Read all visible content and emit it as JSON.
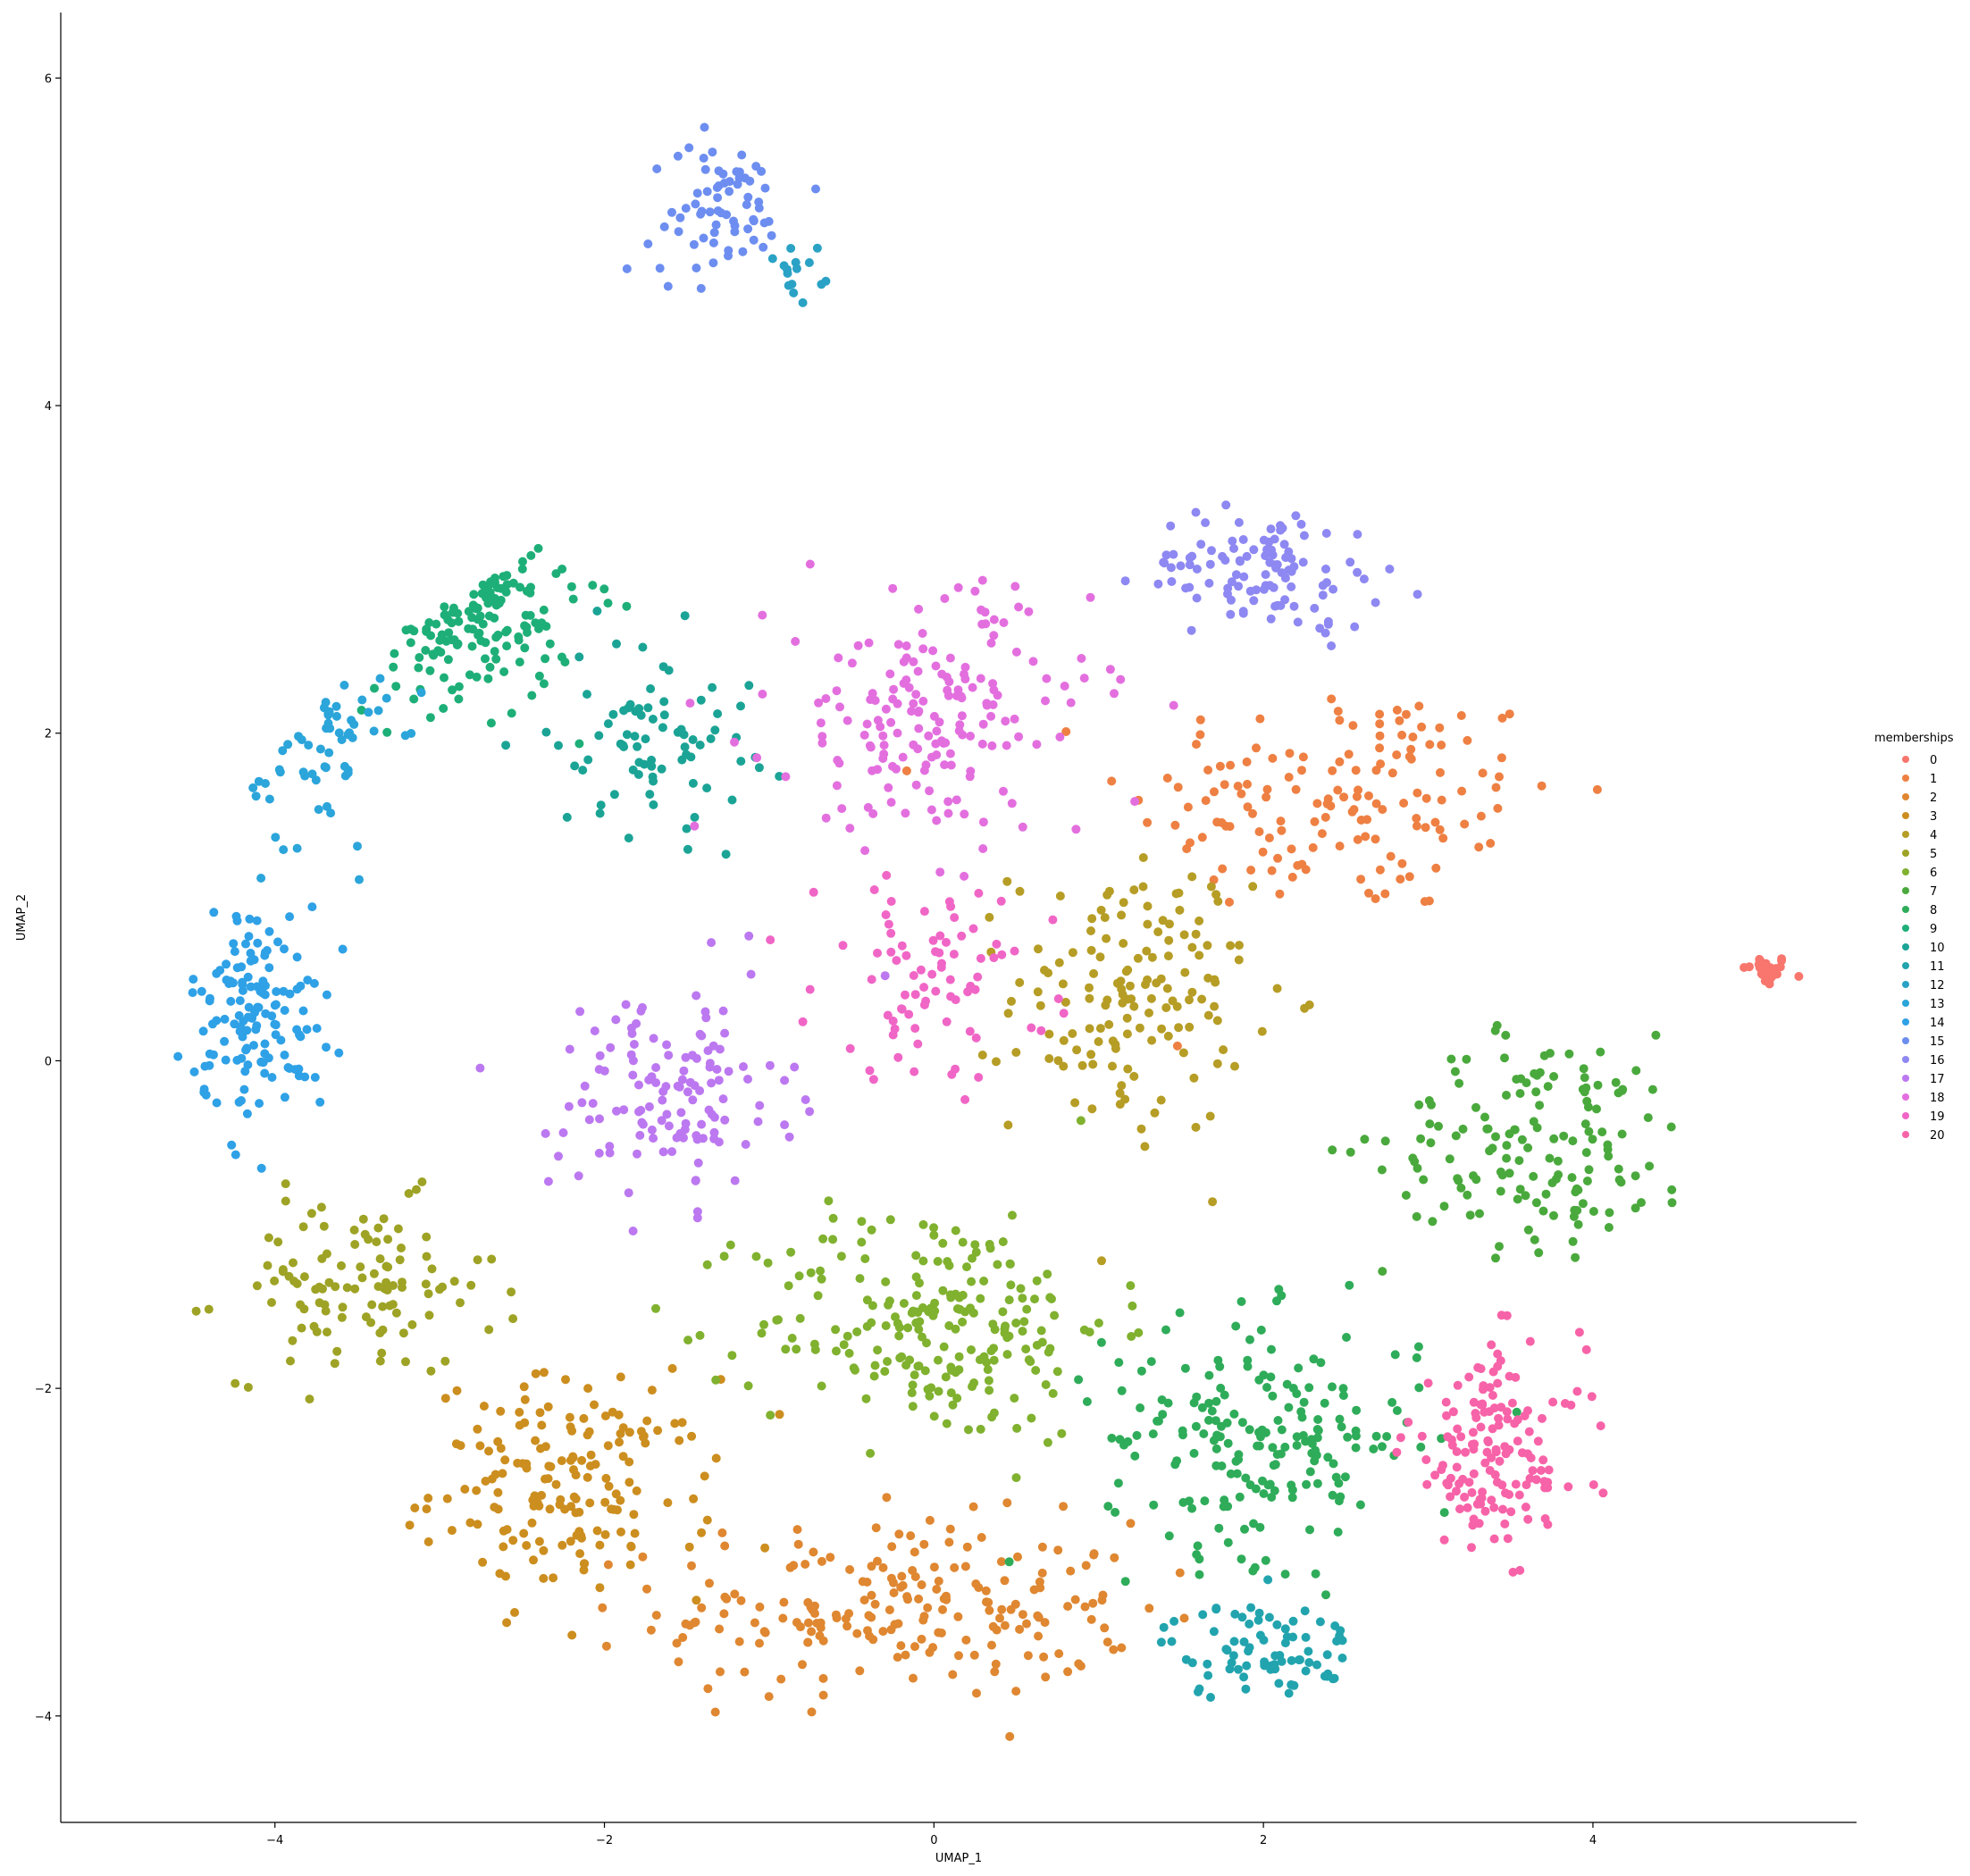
{
  "chart_data": {
    "type": "scatter",
    "title": "",
    "xlabel": "UMAP_1",
    "ylabel": "UMAP_2",
    "xlim": [
      -5.3,
      5.6
    ],
    "ylim": [
      -4.65,
      6.4
    ],
    "xticks": [
      -4,
      -2,
      0,
      2,
      4
    ],
    "yticks": [
      -4,
      -2,
      0,
      2,
      4,
      6
    ],
    "xtick_labels": [
      "−4",
      "−2",
      "0",
      "2",
      "4"
    ],
    "ytick_labels": [
      "−4",
      "−2",
      "0",
      "2",
      "4",
      "6"
    ],
    "grid": false,
    "legend": {
      "title": "memberships",
      "placement": "right",
      "entries": [
        "0",
        "1",
        "2",
        "3",
        "4",
        "5",
        "6",
        "7",
        "8",
        "9",
        "10",
        "11",
        "12",
        "13",
        "14",
        "15",
        "16",
        "17",
        "18",
        "19",
        "20"
      ]
    },
    "colors": [
      "#f8766d",
      "#ee8043",
      "#df8731",
      "#cc8e1f",
      "#b69d25",
      "#9ea325",
      "#80b12f",
      "#4aa93c",
      "#2fac59",
      "#1eaf78",
      "#1ba496",
      "#22a4ae",
      "#2aa2c5",
      "#2ba5da",
      "#2fa1e6",
      "#6d8ef0",
      "#8e88f2",
      "#bc78f0",
      "#e36fdf",
      "#f066c6",
      "#f763a8"
    ],
    "series": [
      {
        "name": "0",
        "center": [
          5.05,
          0.55
        ],
        "spread": [
          0.12,
          0.08
        ],
        "count": 30,
        "n_shape": "blob"
      },
      {
        "name": "1",
        "center": [
          2.5,
          1.6
        ],
        "spread": [
          1.1,
          0.6
        ],
        "count": 150,
        "n_shape": "blob"
      },
      {
        "name": "2",
        "center": [
          -0.2,
          -3.35
        ],
        "spread": [
          1.2,
          0.45
        ],
        "count": 210,
        "n_shape": "blob"
      },
      {
        "name": "3",
        "center": [
          -2.2,
          -2.6
        ],
        "spread": [
          0.7,
          0.55
        ],
        "count": 170,
        "n_shape": "blob"
      },
      {
        "name": "4",
        "center": [
          1.2,
          0.4
        ],
        "spread": [
          0.6,
          0.7
        ],
        "count": 150,
        "n_shape": "blob"
      },
      {
        "name": "5",
        "center": [
          -3.5,
          -1.4
        ],
        "spread": [
          0.7,
          0.45
        ],
        "count": 110,
        "n_shape": "blob"
      },
      {
        "name": "6",
        "center": [
          0.0,
          -1.6
        ],
        "spread": [
          0.9,
          0.6
        ],
        "count": 220,
        "n_shape": "blob"
      },
      {
        "name": "7",
        "center": [
          3.7,
          -0.5
        ],
        "spread": [
          0.8,
          0.55
        ],
        "count": 150,
        "n_shape": "blob"
      },
      {
        "name": "8",
        "center": [
          2.0,
          -2.3
        ],
        "spread": [
          0.8,
          0.6
        ],
        "count": 200,
        "n_shape": "blob"
      },
      {
        "name": "9",
        "center": [
          -2.9,
          2.8
        ],
        "spread": [
          0.6,
          0.5
        ],
        "count": 150,
        "n_shape": "blob"
      },
      {
        "name": "10",
        "center": [
          -1.7,
          2.0
        ],
        "spread": [
          0.5,
          0.5
        ],
        "count": 80,
        "n_shape": "blob"
      },
      {
        "name": "11",
        "center": [
          2.0,
          -3.6
        ],
        "spread": [
          0.5,
          0.25
        ],
        "count": 80,
        "n_shape": "blob"
      },
      {
        "name": "12",
        "center": [
          -0.8,
          4.8
        ],
        "spread": [
          0.15,
          0.25
        ],
        "count": 15,
        "n_shape": "blob"
      },
      {
        "name": "13",
        "center": [
          -3.8,
          1.9
        ],
        "spread": [
          0.4,
          0.5
        ],
        "count": 60,
        "n_shape": "blob"
      },
      {
        "name": "14",
        "center": [
          -4.1,
          0.3
        ],
        "spread": [
          0.35,
          0.55
        ],
        "count": 140,
        "n_shape": "blob"
      },
      {
        "name": "15",
        "center": [
          -1.3,
          5.2
        ],
        "spread": [
          0.35,
          0.35
        ],
        "count": 70,
        "n_shape": "blob"
      },
      {
        "name": "16",
        "center": [
          2.0,
          3.0
        ],
        "spread": [
          0.6,
          0.3
        ],
        "count": 110,
        "n_shape": "blob"
      },
      {
        "name": "17",
        "center": [
          -1.6,
          -0.2
        ],
        "spread": [
          0.6,
          0.55
        ],
        "count": 130,
        "n_shape": "blob"
      },
      {
        "name": "18",
        "center": [
          0.0,
          2.1
        ],
        "spread": [
          0.8,
          0.65
        ],
        "count": 180,
        "n_shape": "blob"
      },
      {
        "name": "19",
        "center": [
          0.0,
          0.5
        ],
        "spread": [
          0.6,
          0.5
        ],
        "count": 80,
        "n_shape": "blob"
      },
      {
        "name": "20",
        "center": [
          3.4,
          -2.4
        ],
        "spread": [
          0.45,
          0.55
        ],
        "count": 150,
        "n_shape": "blob"
      }
    ]
  }
}
